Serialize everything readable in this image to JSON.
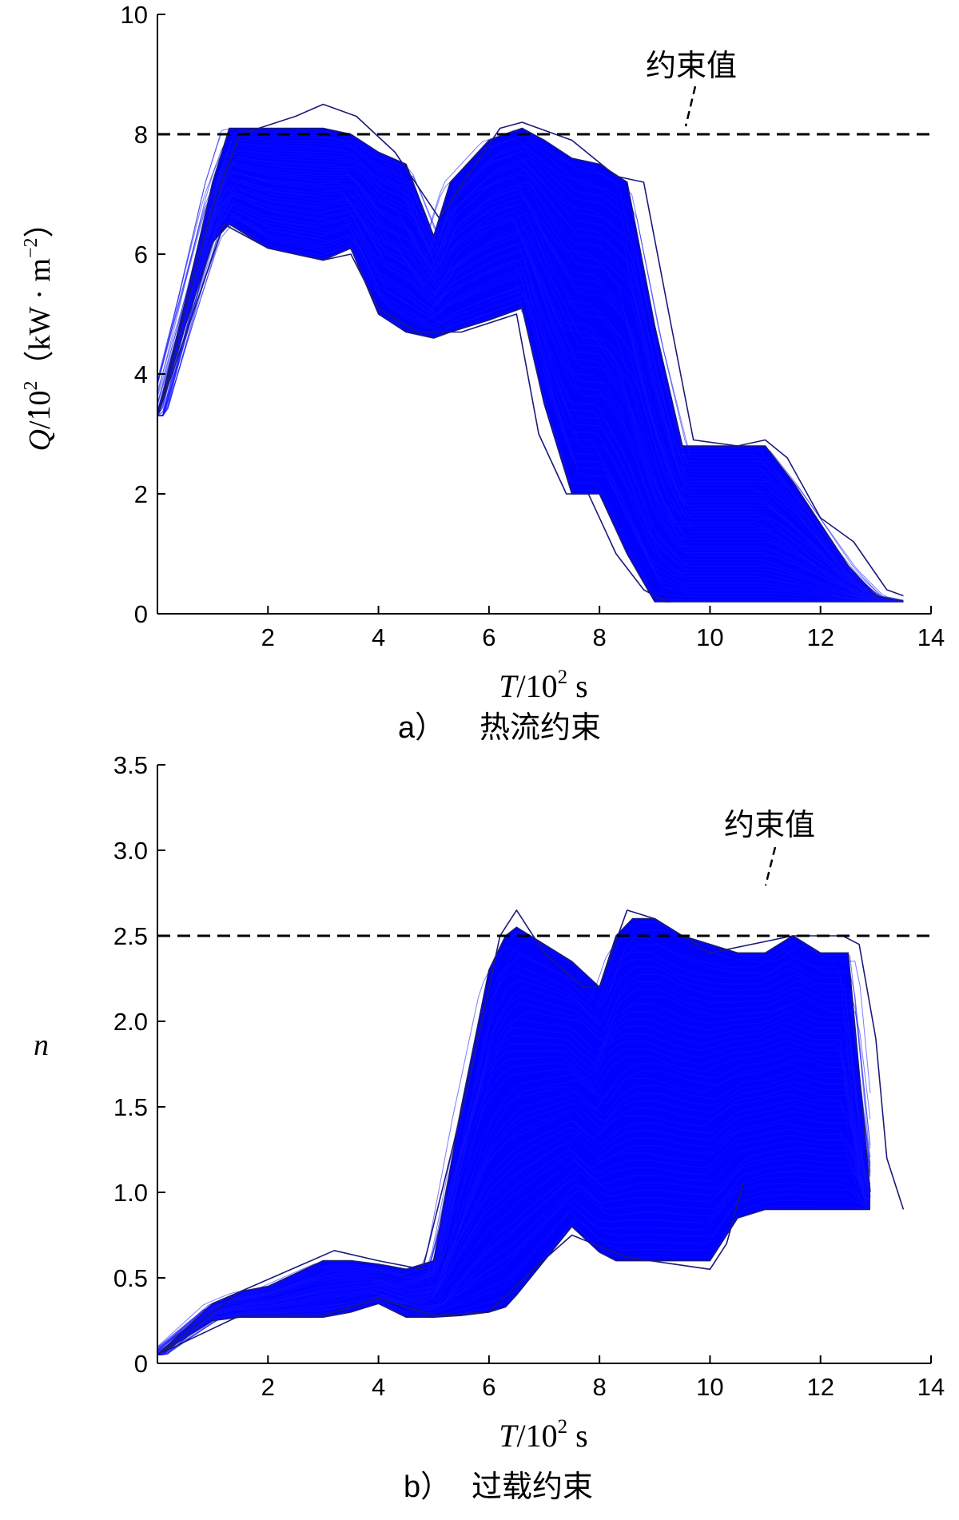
{
  "chart_data": [
    {
      "type": "line",
      "panel": "a",
      "caption_prefix": "a）",
      "caption": "热流约束",
      "xlabel_sym": "T",
      "xlabel_unit": "/10",
      "xlabel_exp": "2",
      "xlabel_tail": " s",
      "ylabel_sym": "Q",
      "ylabel_unit": "/10",
      "ylabel_exp": "2",
      "ylabel_tail": "（kW · m",
      "ylabel_tail_exp": "−2",
      "ylabel_close": "）",
      "xlim": [
        0,
        14
      ],
      "ylim": [
        0,
        10
      ],
      "xticks": [
        2,
        4,
        6,
        8,
        10,
        12,
        14
      ],
      "yticks": [
        0,
        2,
        4,
        6,
        8,
        10
      ],
      "ytick_labels": [
        "0",
        "2",
        "4",
        "6",
        "8",
        "10"
      ],
      "grid": false,
      "series_color": "#0000ff",
      "edge_color": "#1a1a7a",
      "constraint": {
        "label": "约束值",
        "value": 8
      },
      "envelope": {
        "x": [
          0,
          0.5,
          1.0,
          1.3,
          2.0,
          3.0,
          3.5,
          4.0,
          4.5,
          5.0,
          5.3,
          6.0,
          6.6,
          7.0,
          7.5,
          8.0,
          8.5,
          9.0,
          9.5,
          10.0,
          10.5,
          11.0,
          11.5,
          12.0,
          12.5,
          13.0,
          13.5
        ],
        "upper": [
          3.3,
          5.2,
          7.2,
          8.1,
          8.1,
          8.1,
          8.0,
          7.7,
          7.5,
          6.3,
          7.2,
          7.9,
          8.1,
          7.9,
          7.6,
          7.5,
          7.2,
          4.8,
          2.8,
          2.8,
          2.8,
          2.8,
          2.2,
          1.5,
          0.8,
          0.3,
          0.2
        ],
        "lower": [
          3.3,
          4.8,
          6.2,
          6.5,
          6.1,
          5.9,
          6.1,
          5.0,
          4.7,
          4.6,
          4.7,
          4.9,
          5.1,
          3.5,
          2.0,
          2.0,
          1.0,
          0.2,
          0.2,
          0.2,
          0.2,
          0.2,
          0.2,
          0.2,
          0.2,
          0.2,
          0.2
        ]
      },
      "extreme_traces": [
        {
          "x": [
            0,
            1.0,
            1.5,
            2.5,
            3.0,
            3.6,
            4.3,
            5.1,
            6.2,
            6.6,
            7.5,
            8.3,
            8.8,
            9.3,
            9.7,
            10.5,
            11.0,
            11.4,
            12.0,
            12.6,
            13.2,
            13.5
          ],
          "y": [
            3.3,
            6.8,
            8.0,
            8.3,
            8.5,
            8.3,
            7.7,
            6.6,
            8.1,
            8.2,
            7.9,
            7.3,
            7.2,
            4.8,
            2.9,
            2.8,
            2.9,
            2.6,
            1.6,
            1.2,
            0.4,
            0.3
          ]
        },
        {
          "x": [
            0,
            1.2,
            2.0,
            3.0,
            3.5,
            4.0,
            4.7,
            5.5,
            6.5,
            6.9,
            7.4,
            7.8,
            8.3,
            8.8,
            9.2,
            9.3
          ],
          "y": [
            3.3,
            6.5,
            6.1,
            5.9,
            6.0,
            5.1,
            4.7,
            4.7,
            5.0,
            3.0,
            2.0,
            2.0,
            1.0,
            0.4,
            0.2,
            0.2
          ]
        }
      ]
    },
    {
      "type": "line",
      "panel": "b",
      "caption_prefix": "b）",
      "caption": "过载约束",
      "xlabel_sym": "T",
      "xlabel_unit": "/10",
      "xlabel_exp": "2",
      "xlabel_tail": " s",
      "ylabel_sym": "n",
      "xlim": [
        0,
        14
      ],
      "ylim": [
        0,
        3.5
      ],
      "xticks": [
        2,
        4,
        6,
        8,
        10,
        12,
        14
      ],
      "yticks": [
        0,
        0.5,
        1.0,
        1.5,
        2.0,
        2.5,
        3.0,
        3.5
      ],
      "ytick_labels": [
        "0",
        "0.5",
        "1.0",
        "1.5",
        "2.0",
        "2.5",
        "3.0",
        "3.5"
      ],
      "grid": false,
      "series_color": "#0000ff",
      "edge_color": "#1a1a7a",
      "constraint": {
        "label": "约束值",
        "value": 2.5
      },
      "envelope": {
        "x": [
          0,
          0.5,
          1.0,
          1.5,
          2.0,
          3.0,
          3.5,
          4.0,
          4.5,
          5.0,
          5.5,
          6.0,
          6.3,
          6.5,
          7.0,
          7.5,
          8.0,
          8.3,
          8.6,
          9.0,
          9.5,
          10.0,
          10.5,
          11.0,
          11.5,
          12.0,
          12.5,
          12.9
        ],
        "upper": [
          0.05,
          0.2,
          0.35,
          0.42,
          0.45,
          0.6,
          0.6,
          0.58,
          0.55,
          0.6,
          1.5,
          2.3,
          2.5,
          2.55,
          2.45,
          2.35,
          2.2,
          2.5,
          2.6,
          2.6,
          2.5,
          2.45,
          2.4,
          2.4,
          2.5,
          2.4,
          2.4,
          1.0
        ],
        "lower": [
          0.05,
          0.15,
          0.25,
          0.27,
          0.27,
          0.27,
          0.3,
          0.35,
          0.27,
          0.27,
          0.28,
          0.3,
          0.33,
          0.4,
          0.6,
          0.8,
          0.65,
          0.6,
          0.6,
          0.6,
          0.6,
          0.6,
          0.85,
          0.9,
          0.9,
          0.9,
          0.9,
          0.9
        ]
      },
      "extreme_traces": [
        {
          "x": [
            0,
            1.5,
            3.2,
            4.0,
            4.8,
            5.6,
            6.2,
            6.5,
            7.0,
            7.7,
            8.0,
            8.5,
            9.0,
            10.0,
            11.5,
            12.4,
            12.7,
            13.0,
            13.2,
            13.5
          ],
          "y": [
            0.05,
            0.42,
            0.66,
            0.6,
            0.55,
            1.6,
            2.5,
            2.65,
            2.4,
            2.2,
            2.2,
            2.65,
            2.6,
            2.4,
            2.5,
            2.5,
            2.45,
            1.9,
            1.2,
            0.9
          ]
        },
        {
          "x": [
            0,
            1.5,
            3.0,
            4.0,
            5.0,
            6.0,
            6.8,
            7.5,
            8.5,
            10.0,
            10.3,
            10.6
          ],
          "y": [
            0.05,
            0.28,
            0.28,
            0.38,
            0.28,
            0.3,
            0.55,
            0.75,
            0.62,
            0.55,
            0.7,
            1.05
          ]
        }
      ]
    }
  ]
}
